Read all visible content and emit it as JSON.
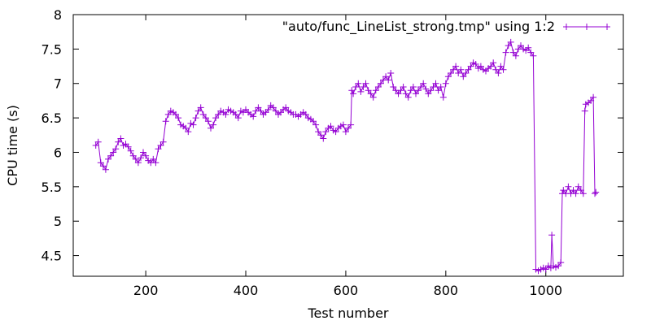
{
  "chart_data": {
    "type": "line",
    "xlabel": "Test number",
    "ylabel": "CPU time (s)",
    "xlim": [
      55,
      1155
    ],
    "ylim": [
      4.2,
      8.0
    ],
    "xticks": [
      200,
      400,
      600,
      800,
      1000
    ],
    "yticks": [
      4.5,
      5,
      5.5,
      6,
      6.5,
      7,
      7.5,
      8
    ],
    "ytick_labels": [
      "4.5",
      "5",
      "5.5",
      "6",
      "6.5",
      "7",
      "7.5",
      "8"
    ],
    "grid": false,
    "legend_position": "top-right",
    "series": [
      {
        "name": "\"auto/func_LineList_strong.tmp\" using 1:2",
        "color": "#9400d3",
        "marker": "plus",
        "points": [
          [
            100,
            6.1
          ],
          [
            105,
            6.15
          ],
          [
            110,
            5.85
          ],
          [
            115,
            5.8
          ],
          [
            120,
            5.75
          ],
          [
            125,
            5.9
          ],
          [
            130,
            5.95
          ],
          [
            135,
            6.0
          ],
          [
            140,
            6.05
          ],
          [
            145,
            6.15
          ],
          [
            150,
            6.2
          ],
          [
            155,
            6.1
          ],
          [
            160,
            6.12
          ],
          [
            165,
            6.08
          ],
          [
            170,
            6.02
          ],
          [
            175,
            5.95
          ],
          [
            180,
            5.9
          ],
          [
            185,
            5.85
          ],
          [
            190,
            5.92
          ],
          [
            195,
            6.0
          ],
          [
            200,
            5.95
          ],
          [
            205,
            5.88
          ],
          [
            210,
            5.85
          ],
          [
            215,
            5.9
          ],
          [
            220,
            5.85
          ],
          [
            225,
            6.05
          ],
          [
            230,
            6.1
          ],
          [
            235,
            6.15
          ],
          [
            240,
            6.45
          ],
          [
            245,
            6.55
          ],
          [
            250,
            6.6
          ],
          [
            255,
            6.58
          ],
          [
            260,
            6.55
          ],
          [
            265,
            6.5
          ],
          [
            270,
            6.4
          ],
          [
            275,
            6.38
          ],
          [
            280,
            6.35
          ],
          [
            285,
            6.3
          ],
          [
            290,
            6.42
          ],
          [
            295,
            6.4
          ],
          [
            300,
            6.5
          ],
          [
            305,
            6.6
          ],
          [
            310,
            6.65
          ],
          [
            315,
            6.55
          ],
          [
            320,
            6.5
          ],
          [
            325,
            6.45
          ],
          [
            330,
            6.35
          ],
          [
            335,
            6.4
          ],
          [
            340,
            6.5
          ],
          [
            345,
            6.55
          ],
          [
            350,
            6.6
          ],
          [
            355,
            6.58
          ],
          [
            360,
            6.55
          ],
          [
            365,
            6.62
          ],
          [
            370,
            6.6
          ],
          [
            375,
            6.58
          ],
          [
            380,
            6.55
          ],
          [
            385,
            6.5
          ],
          [
            390,
            6.6
          ],
          [
            395,
            6.58
          ],
          [
            400,
            6.62
          ],
          [
            405,
            6.58
          ],
          [
            410,
            6.55
          ],
          [
            415,
            6.52
          ],
          [
            420,
            6.6
          ],
          [
            425,
            6.65
          ],
          [
            430,
            6.6
          ],
          [
            435,
            6.55
          ],
          [
            440,
            6.58
          ],
          [
            445,
            6.62
          ],
          [
            450,
            6.68
          ],
          [
            455,
            6.65
          ],
          [
            460,
            6.6
          ],
          [
            465,
            6.55
          ],
          [
            470,
            6.58
          ],
          [
            475,
            6.62
          ],
          [
            480,
            6.65
          ],
          [
            485,
            6.6
          ],
          [
            490,
            6.58
          ],
          [
            495,
            6.55
          ],
          [
            500,
            6.55
          ],
          [
            505,
            6.52
          ],
          [
            510,
            6.55
          ],
          [
            515,
            6.58
          ],
          [
            520,
            6.55
          ],
          [
            525,
            6.5
          ],
          [
            530,
            6.48
          ],
          [
            535,
            6.45
          ],
          [
            540,
            6.4
          ],
          [
            545,
            6.3
          ],
          [
            550,
            6.25
          ],
          [
            555,
            6.2
          ],
          [
            560,
            6.3
          ],
          [
            565,
            6.35
          ],
          [
            570,
            6.38
          ],
          [
            575,
            6.32
          ],
          [
            580,
            6.3
          ],
          [
            585,
            6.35
          ],
          [
            590,
            6.38
          ],
          [
            595,
            6.4
          ],
          [
            600,
            6.3
          ],
          [
            605,
            6.35
          ],
          [
            610,
            6.4
          ],
          [
            612,
            6.9
          ],
          [
            615,
            6.85
          ],
          [
            620,
            6.95
          ],
          [
            625,
            7.0
          ],
          [
            630,
            6.88
          ],
          [
            635,
            6.95
          ],
          [
            640,
            7.0
          ],
          [
            645,
            6.9
          ],
          [
            650,
            6.85
          ],
          [
            655,
            6.8
          ],
          [
            660,
            6.9
          ],
          [
            665,
            6.95
          ],
          [
            670,
            7.0
          ],
          [
            675,
            7.05
          ],
          [
            680,
            7.1
          ],
          [
            685,
            7.05
          ],
          [
            690,
            7.15
          ],
          [
            695,
            6.95
          ],
          [
            700,
            6.9
          ],
          [
            705,
            6.85
          ],
          [
            710,
            6.9
          ],
          [
            715,
            6.95
          ],
          [
            720,
            6.85
          ],
          [
            725,
            6.8
          ],
          [
            730,
            6.9
          ],
          [
            735,
            6.95
          ],
          [
            740,
            6.85
          ],
          [
            745,
            6.9
          ],
          [
            750,
            6.95
          ],
          [
            755,
            7.0
          ],
          [
            760,
            6.92
          ],
          [
            765,
            6.85
          ],
          [
            770,
            6.9
          ],
          [
            775,
            6.95
          ],
          [
            780,
            7.0
          ],
          [
            785,
            6.9
          ],
          [
            790,
            6.95
          ],
          [
            795,
            6.8
          ],
          [
            800,
            7.0
          ],
          [
            805,
            7.1
          ],
          [
            810,
            7.15
          ],
          [
            815,
            7.2
          ],
          [
            820,
            7.25
          ],
          [
            825,
            7.15
          ],
          [
            830,
            7.2
          ],
          [
            835,
            7.1
          ],
          [
            840,
            7.15
          ],
          [
            845,
            7.2
          ],
          [
            850,
            7.25
          ],
          [
            855,
            7.3
          ],
          [
            860,
            7.28
          ],
          [
            865,
            7.22
          ],
          [
            870,
            7.25
          ],
          [
            875,
            7.2
          ],
          [
            880,
            7.18
          ],
          [
            885,
            7.22
          ],
          [
            890,
            7.25
          ],
          [
            895,
            7.3
          ],
          [
            900,
            7.2
          ],
          [
            905,
            7.15
          ],
          [
            910,
            7.25
          ],
          [
            915,
            7.2
          ],
          [
            920,
            7.45
          ],
          [
            925,
            7.55
          ],
          [
            930,
            7.6
          ],
          [
            935,
            7.45
          ],
          [
            940,
            7.4
          ],
          [
            945,
            7.5
          ],
          [
            950,
            7.55
          ],
          [
            955,
            7.5
          ],
          [
            960,
            7.48
          ],
          [
            965,
            7.52
          ],
          [
            970,
            7.45
          ],
          [
            975,
            7.4
          ],
          [
            980,
            4.3
          ],
          [
            985,
            4.28
          ],
          [
            990,
            4.3
          ],
          [
            995,
            4.32
          ],
          [
            1000,
            4.3
          ],
          [
            1005,
            4.35
          ],
          [
            1010,
            4.32
          ],
          [
            1012,
            4.8
          ],
          [
            1015,
            4.35
          ],
          [
            1020,
            4.33
          ],
          [
            1025,
            4.35
          ],
          [
            1030,
            4.4
          ],
          [
            1033,
            5.4
          ],
          [
            1035,
            5.45
          ],
          [
            1040,
            5.4
          ],
          [
            1045,
            5.5
          ],
          [
            1050,
            5.4
          ],
          [
            1055,
            5.45
          ],
          [
            1060,
            5.4
          ],
          [
            1065,
            5.5
          ],
          [
            1070,
            5.45
          ],
          [
            1075,
            5.4
          ],
          [
            1078,
            6.6
          ],
          [
            1080,
            6.7
          ],
          [
            1085,
            6.72
          ],
          [
            1090,
            6.75
          ],
          [
            1095,
            6.8
          ],
          [
            1098,
            5.4
          ],
          [
            1100,
            5.42
          ]
        ]
      }
    ]
  }
}
